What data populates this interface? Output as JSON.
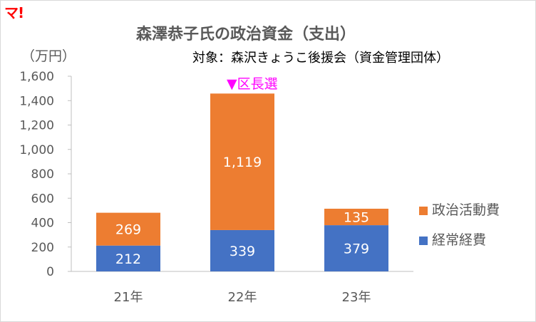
{
  "logo": "マ!",
  "title": "森澤恭子氏の政治資金（支出）",
  "unit_label": "（万円）",
  "subject": "対象：森沢きょうこ後援会（資金管理団体）",
  "annotation": "▼区長選",
  "colors": {
    "political_activity": "#ed7d31",
    "ordinary": "#4472c4"
  },
  "chart_data": {
    "type": "bar",
    "stacked": true,
    "categories": [
      "21年",
      "22年",
      "23年"
    ],
    "series": [
      {
        "name": "経常経費",
        "values": [
          212,
          339,
          379
        ]
      },
      {
        "name": "政治活動費",
        "values": [
          269,
          1119,
          135
        ]
      }
    ],
    "y_ticks": [
      "0",
      "200",
      "400",
      "600",
      "800",
      "1,000",
      "1,200",
      "1,400",
      "1,600"
    ],
    "value_labels": [
      [
        "212",
        "339",
        "379"
      ],
      [
        "269",
        "1,119",
        "135"
      ]
    ],
    "ylim": [
      0,
      1600
    ],
    "legend": [
      "政治活動費",
      "経常経費"
    ],
    "legend_position": "right",
    "grid": false
  }
}
